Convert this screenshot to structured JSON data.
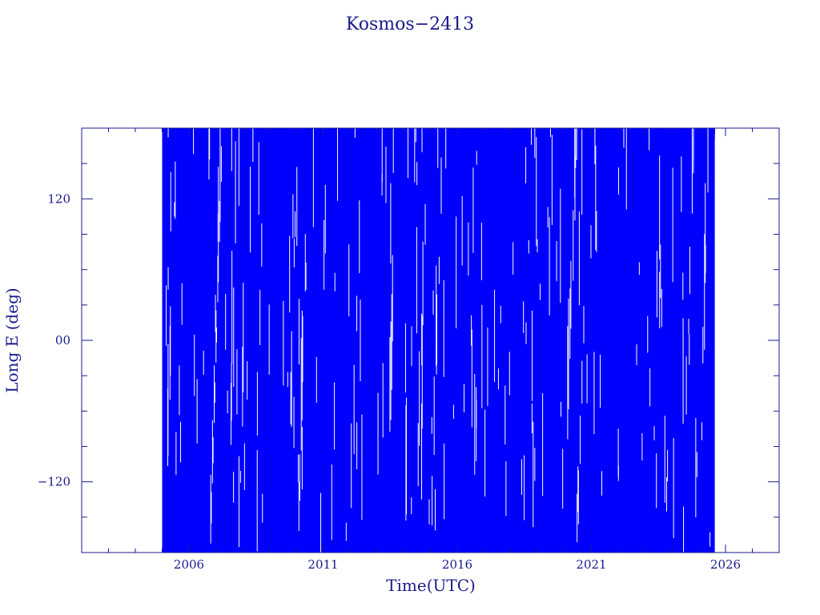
{
  "chart_data": {
    "type": "line",
    "title": "Kosmos−2413",
    "xlabel": "Time(UTC)",
    "ylabel": "Long E (deg)",
    "xlim": [
      2002.0,
      2028.0
    ],
    "ylim": [
      -180,
      180
    ],
    "x_ticks": [
      2006,
      2011,
      2016,
      2021,
      2026
    ],
    "x_tick_labels": [
      "2006",
      "2011",
      "2016",
      "2021",
      "2026"
    ],
    "y_ticks": [
      -120,
      0,
      120
    ],
    "y_tick_labels": [
      "−120",
      "00",
      "120"
    ],
    "data_range": {
      "start": 2005.0,
      "end": 2025.6
    },
    "series": [
      {
        "description_points": "dense longitude track, values sweep the full -180..180 range",
        "x": [
          2005.0,
          2006.0,
          2007.0,
          2008.0,
          2009.0,
          2010.0,
          2011.0,
          2012.0,
          2013.0,
          2014.0,
          2015.0,
          2016.0,
          2017.0,
          2018.0,
          2019.0,
          2020.0,
          2021.0,
          2022.0,
          2023.0,
          2024.0,
          2025.0,
          2025.6
        ],
        "y": [
          -180,
          180,
          -180,
          180,
          -180,
          180,
          -180,
          180,
          -180,
          180,
          -180,
          180,
          -180,
          180,
          -180,
          180,
          -180,
          180,
          -180,
          180,
          -180,
          180
        ]
      }
    ],
    "colors": {
      "series": "#0000ff",
      "axes": "#1a1a8c",
      "text": "#1a1a8c"
    },
    "grid": false
  }
}
